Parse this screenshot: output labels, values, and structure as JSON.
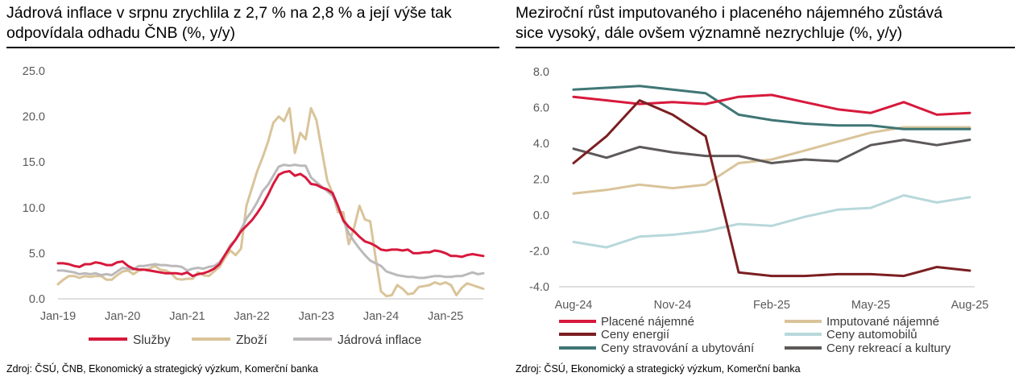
{
  "left": {
    "title_line1": "Jádrová inflace v srpnu zrychlila z 2,7 % na 2,8 % a její výše tak",
    "title_line2": "odpovídala odhadu ČNB (%, y/y)",
    "source": "Zdroj: ČSÚ, ČNB, Ekonomický a strategický výzkum, Komerční banka"
  },
  "right": {
    "title_line1": "Meziroční růst imputovaného i placeného nájemného zůstává",
    "title_line2": "sice vysoký, dále ovšem významně nezrychluje (%, y/y)",
    "source": "Zdroj: ČSÚ, Ekonomický a strategický výzkum, Komerční banka"
  },
  "chart_data": [
    {
      "type": "line",
      "title": "Jádrová inflace v srpnu zrychlila z 2,7 % na 2,8 % a její výše tak odpovídala odhadu ČNB (%, y/y)",
      "x": [
        "2019-01",
        "2019-02",
        "2019-03",
        "2019-04",
        "2019-05",
        "2019-06",
        "2019-07",
        "2019-08",
        "2019-09",
        "2019-10",
        "2019-11",
        "2019-12",
        "2020-01",
        "2020-02",
        "2020-03",
        "2020-04",
        "2020-05",
        "2020-06",
        "2020-07",
        "2020-08",
        "2020-09",
        "2020-10",
        "2020-11",
        "2020-12",
        "2021-01",
        "2021-02",
        "2021-03",
        "2021-04",
        "2021-05",
        "2021-06",
        "2021-07",
        "2021-08",
        "2021-09",
        "2021-10",
        "2021-11",
        "2021-12",
        "2022-01",
        "2022-02",
        "2022-03",
        "2022-04",
        "2022-05",
        "2022-06",
        "2022-07",
        "2022-08",
        "2022-09",
        "2022-10",
        "2022-11",
        "2022-12",
        "2023-01",
        "2023-02",
        "2023-03",
        "2023-04",
        "2023-05",
        "2023-06",
        "2023-07",
        "2023-08",
        "2023-09",
        "2023-10",
        "2023-11",
        "2023-12",
        "2024-01",
        "2024-02",
        "2024-03",
        "2024-04",
        "2024-05",
        "2024-06",
        "2024-07",
        "2024-08",
        "2024-09",
        "2024-10",
        "2024-11",
        "2024-12",
        "2025-01",
        "2025-02",
        "2025-03",
        "2025-04",
        "2025-05",
        "2025-06",
        "2025-07",
        "2025-08"
      ],
      "x_tick_labels": [
        "Jan-19",
        "Jan-20",
        "Jan-21",
        "Jan-22",
        "Jan-23",
        "Jan-24",
        "Jan-25"
      ],
      "ylim": [
        0,
        25
      ],
      "y_ticks": [
        "0.0",
        "5.0",
        "10.0",
        "15.0",
        "20.0",
        "25.0"
      ],
      "grid": false,
      "legend_position": "bottom",
      "series": [
        {
          "name": "Služby",
          "color": "#d7193c",
          "values": [
            3.9,
            3.9,
            3.8,
            3.6,
            3.5,
            3.8,
            3.8,
            4.0,
            3.9,
            3.7,
            3.7,
            4.0,
            4.1,
            3.6,
            3.3,
            3.2,
            3.2,
            3.1,
            3.0,
            2.9,
            2.8,
            2.8,
            2.8,
            2.7,
            2.9,
            2.5,
            2.7,
            2.8,
            3.0,
            3.3,
            3.8,
            4.8,
            5.7,
            6.5,
            7.4,
            8.0,
            8.6,
            9.4,
            10.3,
            11.4,
            12.6,
            13.6,
            13.9,
            14.0,
            13.5,
            13.7,
            13.3,
            12.6,
            12.5,
            12.2,
            12.0,
            11.6,
            10.2,
            8.6,
            7.9,
            7.4,
            6.8,
            6.3,
            6.1,
            5.8,
            5.4,
            5.3,
            5.4,
            5.4,
            5.3,
            5.4,
            5.0,
            5.0,
            5.1,
            5.1,
            5.3,
            5.2,
            5.0,
            4.7,
            4.7,
            4.6,
            4.8,
            4.9,
            4.8,
            4.7
          ]
        },
        {
          "name": "Zboží",
          "color": "#d9c49a",
          "values": [
            1.6,
            2.1,
            2.5,
            2.5,
            2.3,
            2.5,
            2.4,
            2.5,
            2.5,
            2.1,
            2.1,
            2.6,
            3.0,
            3.1,
            2.7,
            3.1,
            3.2,
            3.3,
            3.6,
            3.2,
            3.1,
            2.8,
            2.2,
            2.1,
            2.2,
            2.2,
            2.9,
            2.6,
            2.5,
            3.0,
            3.5,
            4.5,
            5.3,
            4.8,
            5.5,
            10.2,
            12.1,
            14.0,
            15.5,
            17.2,
            19.3,
            20.0,
            19.5,
            20.9,
            16.0,
            18.2,
            17.5,
            20.9,
            19.6,
            16.3,
            13.0,
            11.6,
            9.5,
            9.5,
            6.0,
            7.8,
            10.2,
            8.7,
            8.5,
            4.5,
            0.8,
            0.3,
            0.4,
            1.5,
            1.1,
            0.5,
            0.6,
            1.3,
            1.4,
            1.5,
            1.8,
            1.6,
            1.8,
            1.5,
            0.4,
            1.2,
            1.7,
            1.5,
            1.3,
            1.1
          ]
        },
        {
          "name": "Jádrová inflace",
          "color": "#bcb9bb",
          "values": [
            3.1,
            3.1,
            3.0,
            2.9,
            2.7,
            2.8,
            2.7,
            2.8,
            2.6,
            2.7,
            2.6,
            3.0,
            3.4,
            3.3,
            3.2,
            3.6,
            3.6,
            3.7,
            3.8,
            3.7,
            3.7,
            3.6,
            3.6,
            3.5,
            3.1,
            3.3,
            3.4,
            3.3,
            3.5,
            3.6,
            4.0,
            4.8,
            5.9,
            6.5,
            7.6,
            8.8,
            9.6,
            10.6,
            11.8,
            12.5,
            13.5,
            14.5,
            14.7,
            14.6,
            14.7,
            14.6,
            14.6,
            13.3,
            12.8,
            12.3,
            11.8,
            11.3,
            10.0,
            8.6,
            7.2,
            6.3,
            5.5,
            4.8,
            4.2,
            3.9,
            3.6,
            3.0,
            2.8,
            2.6,
            2.5,
            2.4,
            2.4,
            2.3,
            2.3,
            2.4,
            2.5,
            2.5,
            2.4,
            2.4,
            2.5,
            2.5,
            2.7,
            2.9,
            2.7,
            2.8
          ]
        }
      ]
    },
    {
      "type": "line",
      "title": "Meziroční růst imputovaného i placeného nájemného zůstává sice vysoký, dále ovšem významně nezrychluje (%, y/y)",
      "x": [
        "2024-08",
        "2024-09",
        "2024-10",
        "2024-11",
        "2024-12",
        "2025-01",
        "2025-02",
        "2025-03",
        "2025-04",
        "2025-05",
        "2025-06",
        "2025-07",
        "2025-08"
      ],
      "x_tick_labels": [
        "Aug-24",
        "Nov-24",
        "Feb-25",
        "May-25",
        "Aug-25"
      ],
      "ylim": [
        -4,
        8
      ],
      "y_ticks": [
        "-4.0",
        "-2.0",
        "0.0",
        "2.0",
        "4.0",
        "6.0",
        "8.0"
      ],
      "grid": false,
      "legend_position": "bottom",
      "series": [
        {
          "name": "Placené nájemné",
          "color": "#d7193c",
          "values": [
            6.6,
            6.4,
            6.2,
            6.3,
            6.2,
            6.6,
            6.7,
            6.3,
            5.9,
            5.7,
            6.3,
            5.6,
            5.7
          ]
        },
        {
          "name": "Imputované nájemné",
          "color": "#d9c49a",
          "values": [
            1.2,
            1.4,
            1.7,
            1.5,
            1.7,
            2.9,
            3.1,
            3.6,
            4.1,
            4.6,
            4.9,
            4.9,
            4.9
          ]
        },
        {
          "name": "Ceny energií",
          "color": "#7b1f22",
          "values": [
            2.9,
            4.4,
            6.4,
            5.6,
            4.4,
            -3.2,
            -3.4,
            -3.4,
            -3.3,
            -3.3,
            -3.4,
            -2.9,
            -3.1
          ]
        },
        {
          "name": "Ceny automobilů",
          "color": "#b8d8db",
          "values": [
            -1.5,
            -1.8,
            -1.2,
            -1.1,
            -0.9,
            -0.5,
            -0.6,
            -0.1,
            0.3,
            0.4,
            1.1,
            0.7,
            1.0
          ]
        },
        {
          "name": "Ceny stravování a ubytování",
          "color": "#3f7675",
          "values": [
            7.0,
            7.1,
            7.2,
            7.0,
            6.8,
            5.6,
            5.3,
            5.1,
            5.0,
            5.0,
            4.8,
            4.8,
            4.8
          ]
        },
        {
          "name": "Ceny rekreací a kultury",
          "color": "#5d5959",
          "values": [
            3.7,
            3.2,
            3.8,
            3.5,
            3.3,
            3.3,
            2.9,
            3.1,
            3.0,
            3.9,
            4.2,
            3.9,
            4.2
          ]
        }
      ]
    }
  ]
}
